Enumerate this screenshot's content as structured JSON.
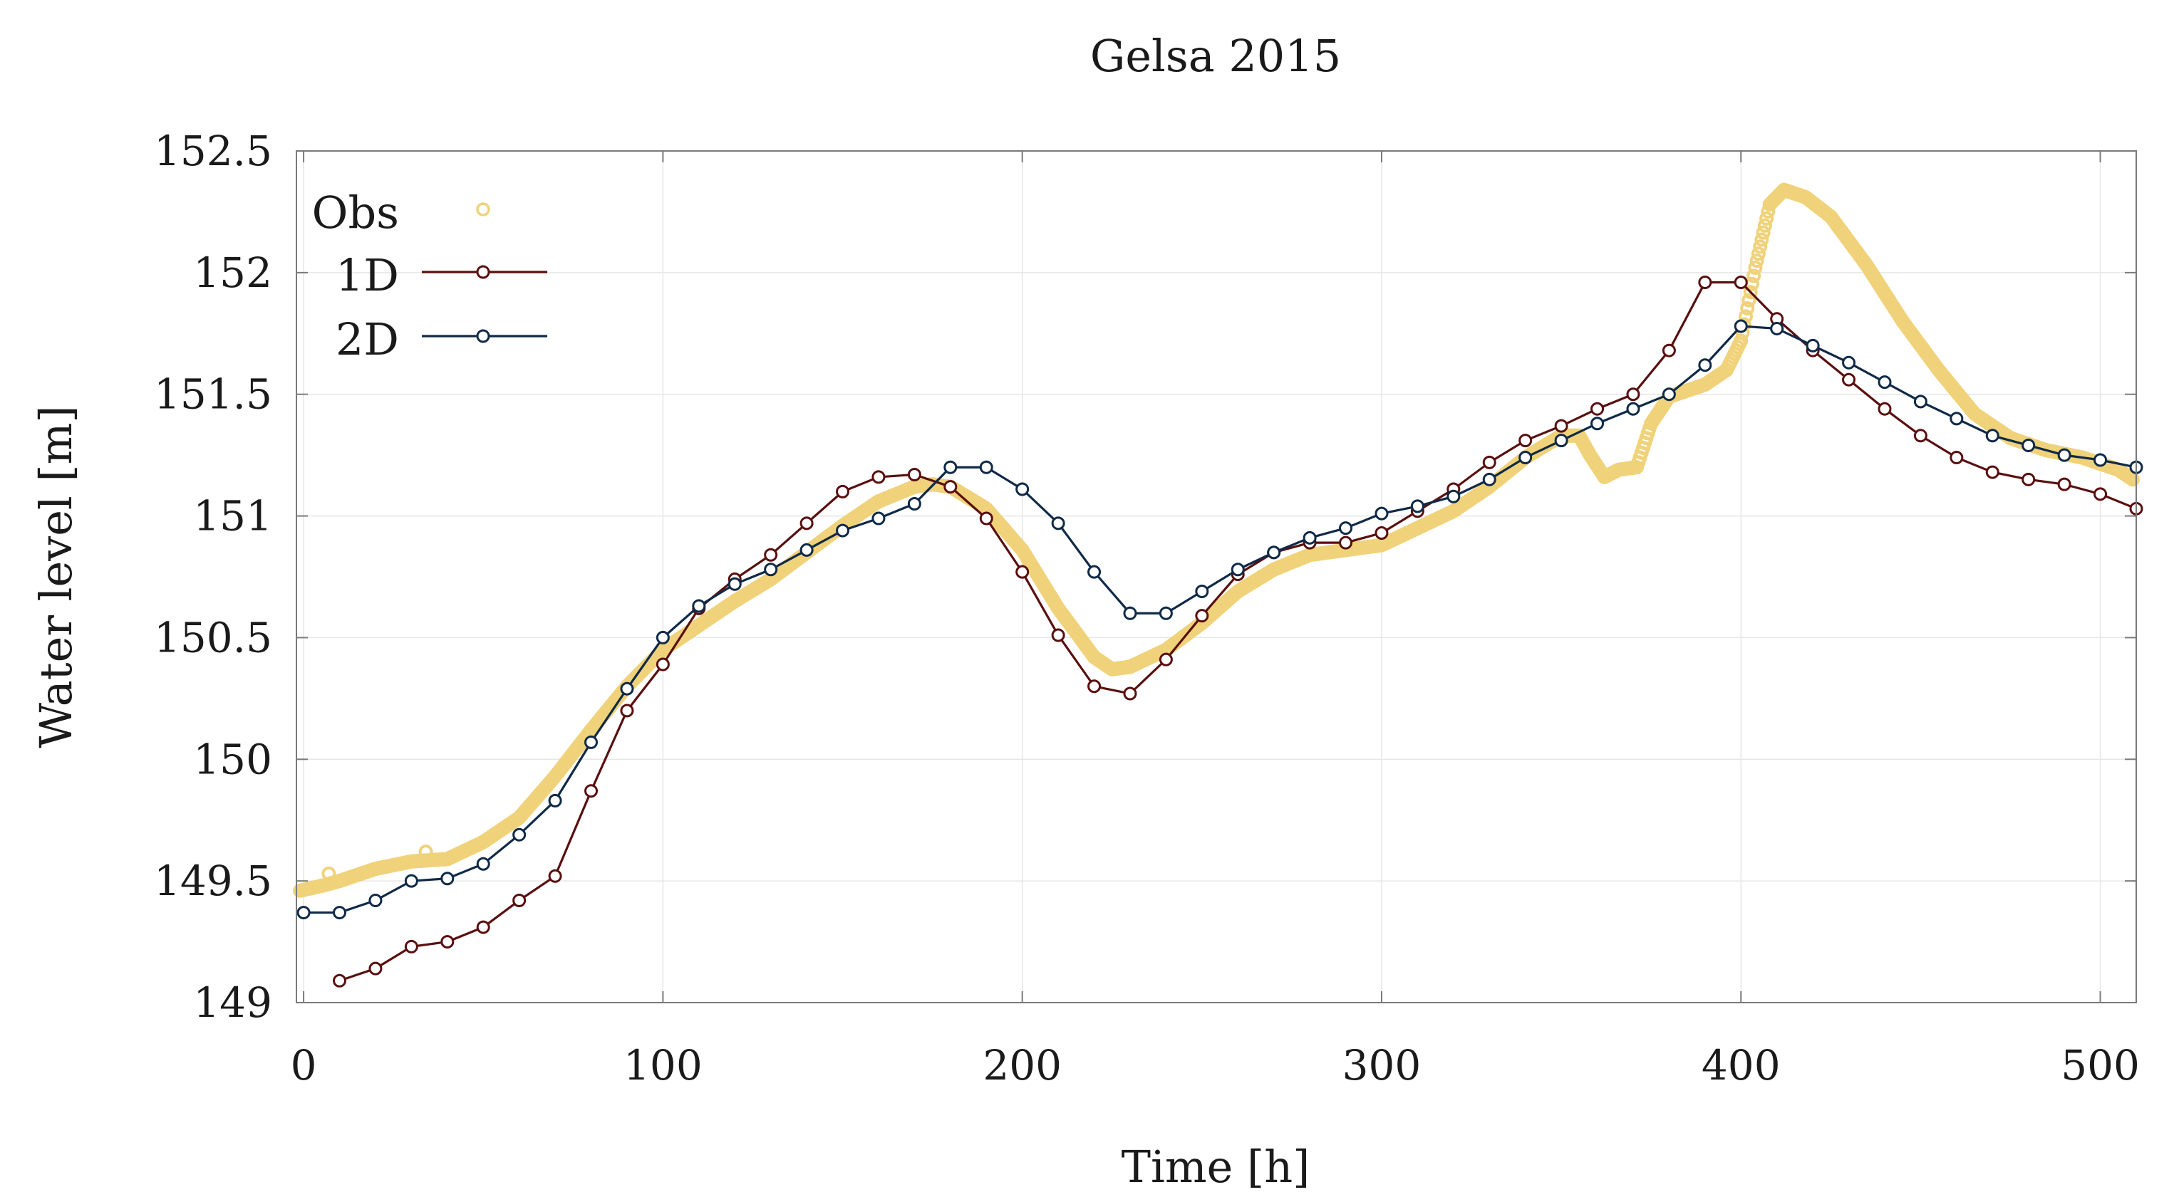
{
  "chart_data": {
    "type": "line",
    "title": "Gelsa 2015",
    "xlabel": "Time [h]",
    "ylabel": "Water level [m]",
    "xlim": [
      -2,
      510
    ],
    "ylim": [
      149,
      152.5
    ],
    "xticks": [
      0,
      100,
      200,
      300,
      400,
      500
    ],
    "yticks": [
      149,
      149.5,
      150,
      150.5,
      151,
      151.5,
      152,
      152.5
    ],
    "xtick_labels": [
      "0",
      "100",
      "200",
      "300",
      "400",
      "500"
    ],
    "ytick_labels": [
      "149",
      "149.5",
      "150",
      "150.5",
      "151",
      "151.5",
      "152",
      "152.5"
    ],
    "grid": true,
    "legend_position": "top-left",
    "colors": {
      "obs": "#f0d27a",
      "1d": "#5a0f0f",
      "2d": "#0f2a48",
      "grid": "#e6e6e6",
      "frame": "#7a7a7a"
    },
    "series": [
      {
        "name": "Obs",
        "style": "markers",
        "color": "#f0d27a",
        "key": [
          [
            -1,
            149.46
          ],
          [
            5,
            149.48
          ],
          [
            10,
            149.5
          ],
          [
            20,
            149.55
          ],
          [
            30,
            149.58
          ],
          [
            40,
            149.59
          ],
          [
            50,
            149.66
          ],
          [
            60,
            149.76
          ],
          [
            70,
            149.93
          ],
          [
            80,
            150.12
          ],
          [
            90,
            150.3
          ],
          [
            100,
            150.45
          ],
          [
            110,
            150.55
          ],
          [
            120,
            150.65
          ],
          [
            130,
            150.74
          ],
          [
            140,
            150.85
          ],
          [
            150,
            150.96
          ],
          [
            160,
            151.06
          ],
          [
            170,
            151.12
          ],
          [
            175,
            151.13
          ],
          [
            180,
            151.12
          ],
          [
            190,
            151.03
          ],
          [
            200,
            150.86
          ],
          [
            210,
            150.62
          ],
          [
            220,
            150.42
          ],
          [
            225,
            150.37
          ],
          [
            230,
            150.38
          ],
          [
            240,
            150.45
          ],
          [
            250,
            150.56
          ],
          [
            260,
            150.69
          ],
          [
            270,
            150.78
          ],
          [
            280,
            150.84
          ],
          [
            290,
            150.86
          ],
          [
            300,
            150.88
          ],
          [
            310,
            150.95
          ],
          [
            320,
            151.02
          ],
          [
            330,
            151.12
          ],
          [
            340,
            151.24
          ],
          [
            350,
            151.33
          ],
          [
            355,
            151.33
          ],
          [
            358,
            151.25
          ],
          [
            362,
            151.16
          ],
          [
            366,
            151.19
          ],
          [
            371,
            151.2
          ],
          [
            375,
            151.38
          ],
          [
            380,
            151.49
          ],
          [
            390,
            151.54
          ],
          [
            396,
            151.6
          ],
          [
            400,
            151.72
          ],
          [
            404,
            152.02
          ],
          [
            408,
            152.28
          ],
          [
            412,
            152.34
          ],
          [
            418,
            152.31
          ],
          [
            425,
            152.23
          ],
          [
            435,
            152.03
          ],
          [
            445,
            151.8
          ],
          [
            455,
            151.6
          ],
          [
            465,
            151.42
          ],
          [
            475,
            151.32
          ],
          [
            485,
            151.27
          ],
          [
            495,
            151.24
          ],
          [
            505,
            151.19
          ],
          [
            509,
            151.15
          ]
        ],
        "outliers": [
          [
            7,
            149.53
          ],
          [
            34,
            149.62
          ]
        ]
      },
      {
        "name": "1D",
        "style": "line-markers",
        "color": "#5a0f0f",
        "x": [
          10,
          20,
          30,
          40,
          50,
          60,
          70,
          80,
          90,
          100,
          110,
          120,
          130,
          140,
          150,
          160,
          170,
          180,
          190,
          200,
          210,
          220,
          230,
          240,
          250,
          260,
          270,
          280,
          290,
          300,
          310,
          320,
          330,
          340,
          350,
          360,
          370,
          380,
          390,
          400,
          410,
          420,
          430,
          440,
          450,
          460,
          470,
          480,
          490,
          500,
          510
        ],
        "y": [
          149.09,
          149.14,
          149.23,
          149.25,
          149.31,
          149.42,
          149.52,
          149.87,
          150.2,
          150.39,
          150.62,
          150.74,
          150.84,
          150.97,
          151.1,
          151.16,
          151.17,
          151.12,
          150.99,
          150.77,
          150.51,
          150.3,
          150.27,
          150.41,
          150.59,
          150.76,
          150.85,
          150.89,
          150.89,
          150.93,
          151.02,
          151.11,
          151.22,
          151.31,
          151.37,
          151.44,
          151.5,
          151.68,
          151.96,
          151.96,
          151.81,
          151.68,
          151.56,
          151.44,
          151.33,
          151.24,
          151.18,
          151.15,
          151.13,
          151.09,
          151.03
        ]
      },
      {
        "name": "2D",
        "style": "line-markers",
        "color": "#0f2a48",
        "x": [
          0,
          10,
          20,
          30,
          40,
          50,
          60,
          70,
          80,
          90,
          100,
          110,
          120,
          130,
          140,
          150,
          160,
          170,
          180,
          190,
          200,
          210,
          220,
          230,
          240,
          250,
          260,
          270,
          280,
          290,
          300,
          310,
          320,
          330,
          340,
          350,
          360,
          370,
          380,
          390,
          400,
          410,
          420,
          430,
          440,
          450,
          460,
          470,
          480,
          490,
          500,
          510
        ],
        "y": [
          149.37,
          149.37,
          149.42,
          149.5,
          149.51,
          149.57,
          149.69,
          149.83,
          150.07,
          150.29,
          150.5,
          150.63,
          150.72,
          150.78,
          150.86,
          150.94,
          150.99,
          151.05,
          151.2,
          151.2,
          151.11,
          150.97,
          150.77,
          150.6,
          150.6,
          150.69,
          150.78,
          150.85,
          150.91,
          150.95,
          151.01,
          151.04,
          151.08,
          151.15,
          151.24,
          151.31,
          151.38,
          151.44,
          151.5,
          151.62,
          151.78,
          151.77,
          151.7,
          151.63,
          151.55,
          151.47,
          151.4,
          151.33,
          151.29,
          151.25,
          151.23,
          151.2
        ]
      }
    ]
  }
}
